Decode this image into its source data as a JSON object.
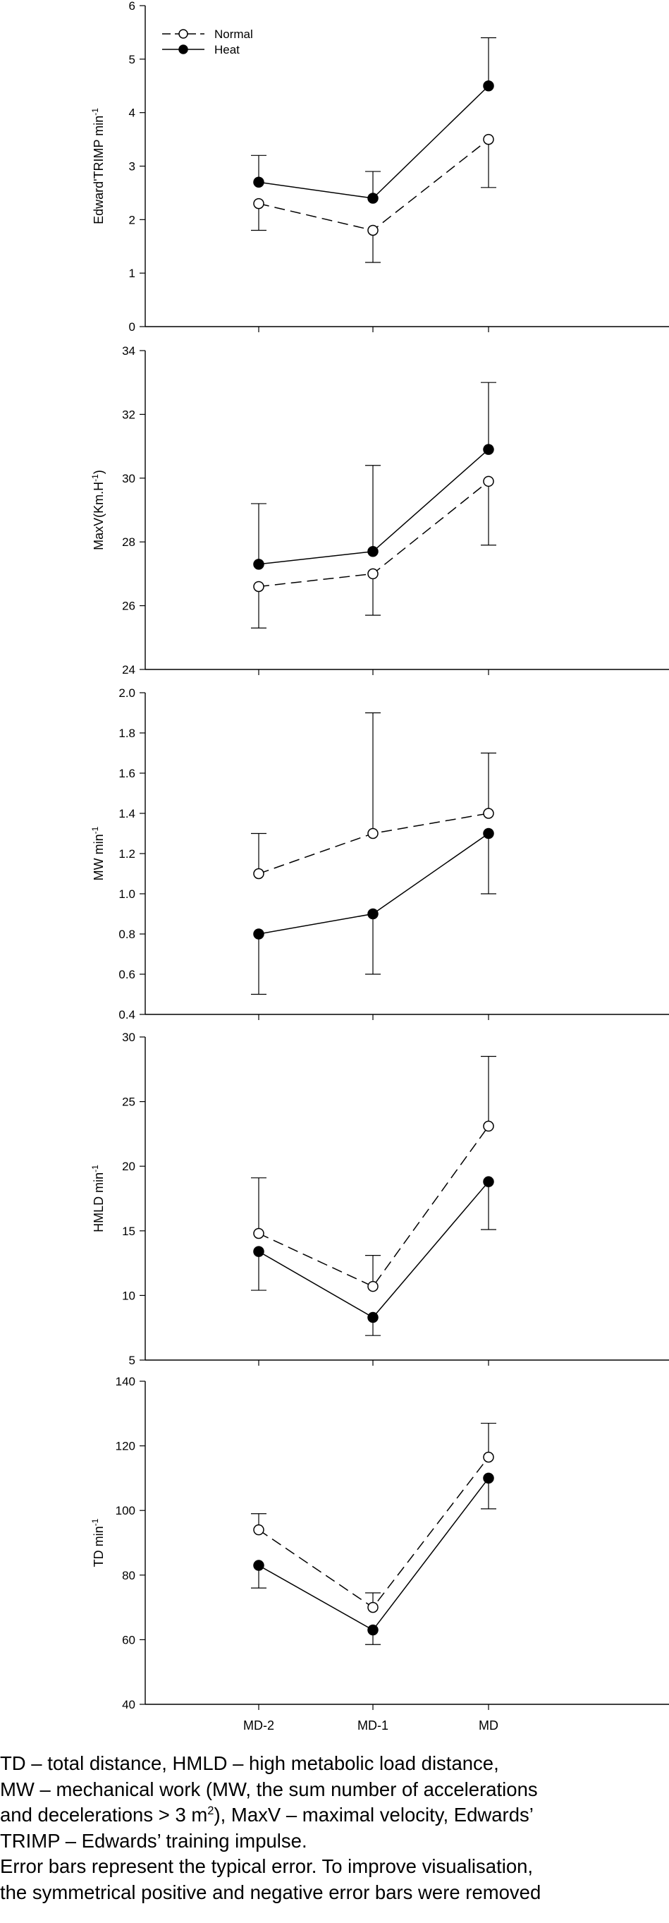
{
  "chart_data": [
    {
      "type": "line",
      "ylabel": "Edward'TRIMP min",
      "ylabel_sup": "-1",
      "categories": [
        "MD-2",
        "MD-1",
        "MD"
      ],
      "ylim": [
        0,
        6
      ],
      "yticks": [
        "0",
        "1",
        "2",
        "3",
        "4",
        "5",
        "6"
      ],
      "series": [
        {
          "name": "Normal",
          "values": [
            2.3,
            1.8,
            3.5
          ],
          "error": [
            0.5,
            0.6,
            0.9
          ],
          "error_dir": "down"
        },
        {
          "name": "Heat",
          "values": [
            2.7,
            2.4,
            4.5
          ],
          "error": [
            0.5,
            0.5,
            0.9
          ],
          "error_dir": "up"
        }
      ],
      "legend": "top-left"
    },
    {
      "type": "line",
      "ylabel": "MaxV(Km.H",
      "ylabel_sup": "-1",
      "ylabel_suffix": ")",
      "categories": [
        "MD-2",
        "MD-1",
        "MD"
      ],
      "ylim": [
        24,
        34
      ],
      "yticks": [
        "24",
        "26",
        "28",
        "30",
        "32",
        "34"
      ],
      "series": [
        {
          "name": "Normal",
          "values": [
            26.6,
            27.0,
            29.9
          ],
          "error": [
            1.3,
            1.3,
            2.0
          ],
          "error_dir": "down"
        },
        {
          "name": "Heat",
          "values": [
            27.3,
            27.7,
            30.9
          ],
          "error": [
            1.9,
            2.7,
            2.1
          ],
          "error_dir": "up"
        }
      ]
    },
    {
      "type": "line",
      "ylabel": "MW min",
      "ylabel_sup": "-1",
      "categories": [
        "MD-2",
        "MD-1",
        "MD"
      ],
      "ylim": [
        0.4,
        2.0
      ],
      "yticks": [
        "0.4",
        "0.6",
        "0.8",
        "1.0",
        "1.2",
        "1.4",
        "1.6",
        "1.8",
        "2.0"
      ],
      "series": [
        {
          "name": "Normal",
          "values": [
            1.1,
            1.3,
            1.4
          ],
          "error": [
            0.2,
            0.6,
            0.3
          ],
          "error_dir": "up"
        },
        {
          "name": "Heat",
          "values": [
            0.8,
            0.9,
            1.3
          ],
          "error": [
            0.3,
            0.3,
            0.3
          ],
          "error_dir": "down"
        }
      ]
    },
    {
      "type": "line",
      "ylabel": "HMLD min",
      "ylabel_sup": "-1",
      "categories": [
        "MD-2",
        "MD-1",
        "MD"
      ],
      "ylim": [
        5,
        30
      ],
      "yticks": [
        "5",
        "10",
        "15",
        "20",
        "25",
        "30"
      ],
      "series": [
        {
          "name": "Normal",
          "values": [
            14.8,
            10.7,
            23.1
          ],
          "error": [
            4.3,
            2.4,
            5.4
          ],
          "error_dir": "up"
        },
        {
          "name": "Heat",
          "values": [
            13.4,
            8.3,
            18.8
          ],
          "error": [
            3.0,
            1.4,
            3.7
          ],
          "error_dir": "down"
        }
      ]
    },
    {
      "type": "line",
      "ylabel": "TD min",
      "ylabel_sup": "-1",
      "categories": [
        "MD-2",
        "MD-1",
        "MD"
      ],
      "ylim": [
        40,
        140
      ],
      "yticks": [
        "40",
        "60",
        "80",
        "100",
        "120",
        "140"
      ],
      "series": [
        {
          "name": "Normal",
          "values": [
            94,
            70,
            116.5
          ],
          "error": [
            5,
            4.5,
            10.5
          ],
          "error_dir": "up"
        },
        {
          "name": "Heat",
          "values": [
            83,
            63,
            110
          ],
          "error": [
            7,
            4.5,
            9.5
          ],
          "error_dir": "down"
        }
      ]
    }
  ],
  "caption": {
    "line1": "TD – total distance, HMLD – high metabolic load distance,",
    "line2": "MW – mechanical work (MW, the sum number of accelerations",
    "line3a": "and decelerations > 3 m",
    "line3sup": "2",
    "line3b": "), MaxV – maximal velocity, Edwards’",
    "line4": "TRIMP – Edwards’ training impulse.",
    "line5": "Error bars represent the typical error. To improve visualisation,",
    "line6": "the symmetrical positive and negative error bars were removed"
  }
}
